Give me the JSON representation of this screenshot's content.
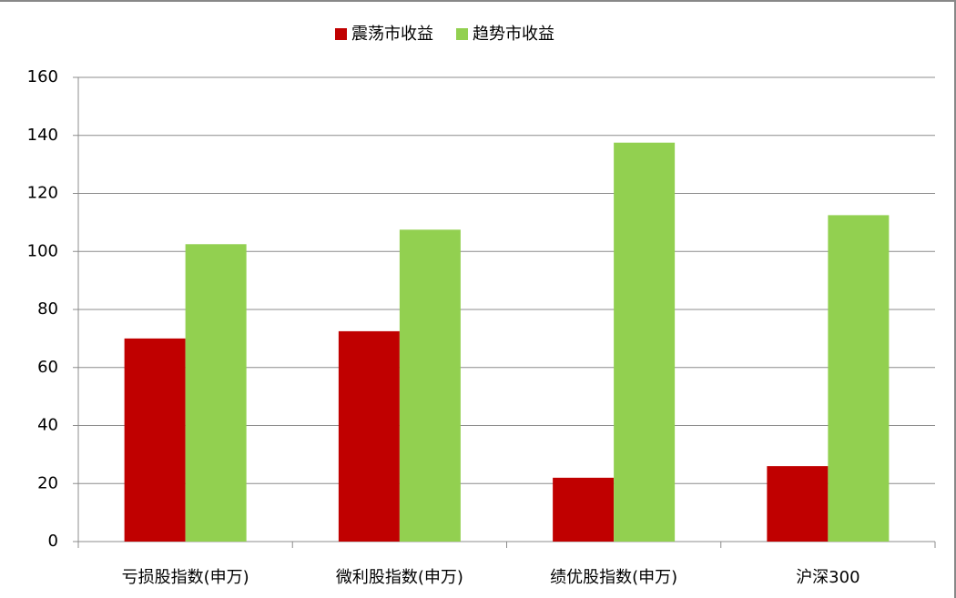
{
  "chart_data": {
    "type": "bar",
    "categories": [
      "亏损股指数(申万)",
      "微利股指数(申万)",
      "绩优股指数(申万)",
      "沪深300"
    ],
    "series": [
      {
        "name": "震荡市收益",
        "color": "#c00000",
        "values": [
          70,
          72.5,
          22,
          26
        ]
      },
      {
        "name": "趋势市收益",
        "color": "#92d050",
        "values": [
          102.5,
          107.5,
          137.5,
          112.5
        ]
      }
    ],
    "ylim": [
      0,
      160
    ],
    "yticks": [
      0,
      20,
      40,
      60,
      80,
      100,
      120,
      140,
      160
    ],
    "grid": true,
    "legend": "top"
  }
}
